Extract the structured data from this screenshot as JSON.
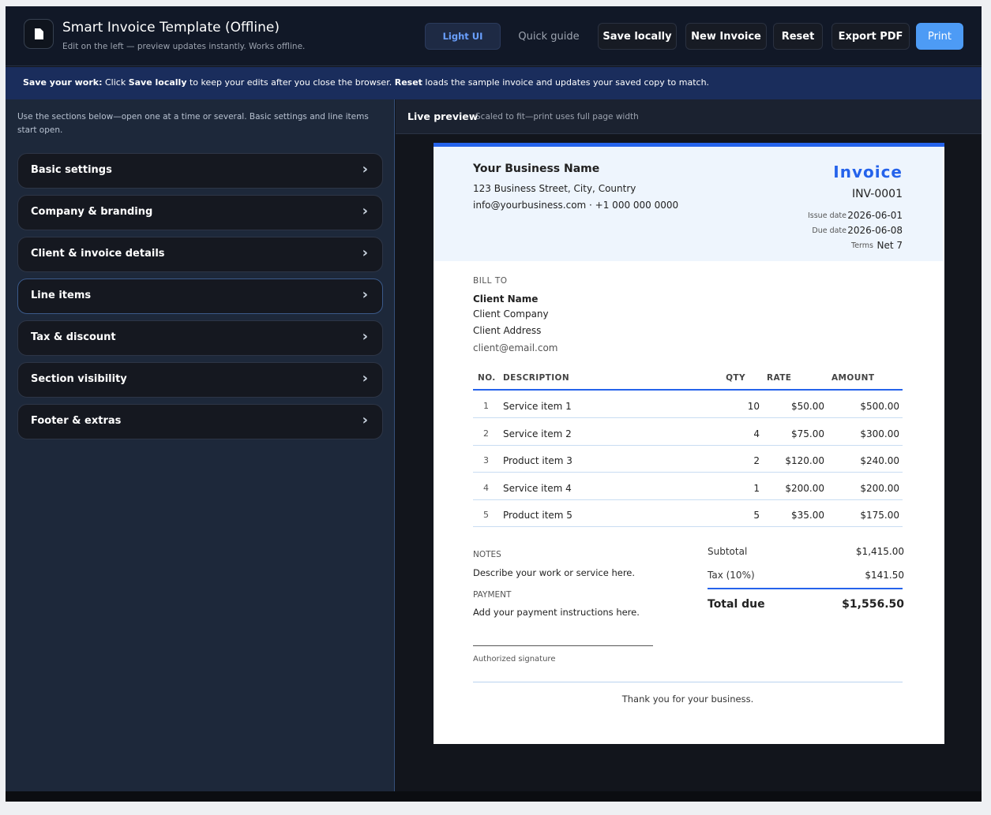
{
  "header": {
    "title": "Smart Invoice Template (Offline)",
    "subtitle": "Edit on the left — preview updates instantly. Works offline.",
    "buttons": [
      "Light UI",
      "Quick guide",
      "Save locally",
      "New Invoice",
      "Reset",
      "Export PDF",
      "Print"
    ]
  },
  "banner": {
    "parts": [
      "Save your work:",
      " Click ",
      "Save locally",
      " to keep your edits after you close the browser. ",
      "Reset",
      " loads the sample invoice and updates your saved copy to match."
    ]
  },
  "sidebar": {
    "intro": "Use the sections below—open one at a time or several. Basic settings and line items start open.",
    "sections": [
      "Basic settings",
      "Company & branding",
      "Client & invoice details",
      "Line items",
      "Tax & discount",
      "Section visibility",
      "Footer & extras"
    ]
  },
  "preview": {
    "label": "Live preview",
    "note": "Scaled to fit—print uses full page width"
  },
  "invoice": {
    "business": {
      "name": "Your Business Name",
      "address": "123 Business Street, City, Country",
      "contact": "info@yourbusiness.com · +1 000 000 0000"
    },
    "title": "Invoice",
    "number": "INV-0001",
    "meta": [
      {
        "label": "Issue date",
        "value": "2026-06-01"
      },
      {
        "label": "Due date",
        "value": "2026-06-08"
      },
      {
        "label": "Terms",
        "value": "Net 7"
      }
    ],
    "bill_to": {
      "label": "BILL TO",
      "name": "Client Name",
      "company": "Client Company",
      "address": "Client Address",
      "email": "client@email.com"
    },
    "table": {
      "headers": [
        "NO.",
        "DESCRIPTION",
        "QTY",
        "RATE",
        "AMOUNT"
      ],
      "rows": [
        [
          "1",
          "Service item 1",
          "10",
          "$50.00",
          "$500.00"
        ],
        [
          "2",
          "Service item 2",
          "4",
          "$75.00",
          "$300.00"
        ],
        [
          "3",
          "Product item 3",
          "2",
          "$120.00",
          "$240.00"
        ],
        [
          "4",
          "Service item 4",
          "1",
          "$200.00",
          "$200.00"
        ],
        [
          "5",
          "Product item 5",
          "5",
          "$35.00",
          "$175.00"
        ]
      ]
    },
    "notes_label": "NOTES",
    "notes": "Describe your work or service here.",
    "payment_label": "PAYMENT",
    "payment": "Add your payment instructions here.",
    "signature": "Authorized signature",
    "totals": [
      {
        "label": "Subtotal",
        "value": "$1,415.00"
      },
      {
        "label": "Tax (10%)",
        "value": "$141.50"
      }
    ],
    "total": {
      "label": "Total due",
      "value": "$1,556.50"
    },
    "footer": "Thank you for your business."
  }
}
